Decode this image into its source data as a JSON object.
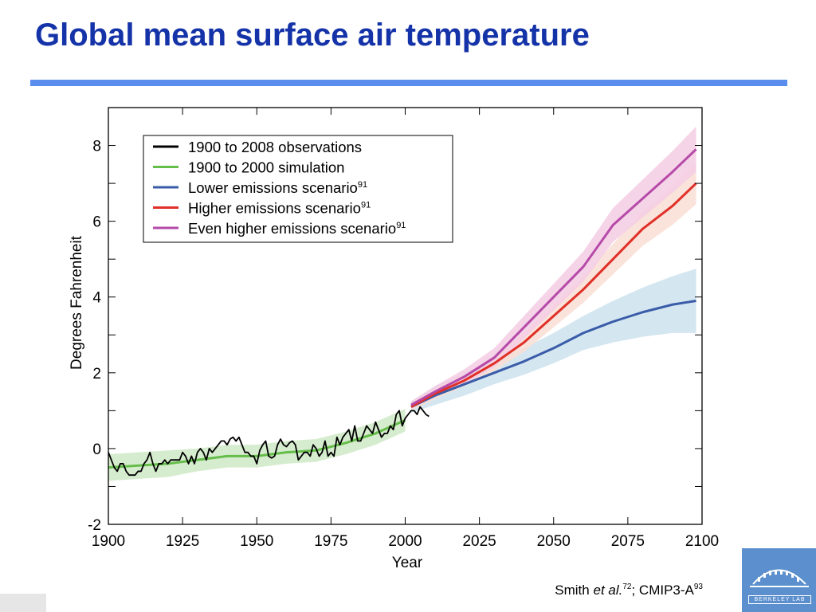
{
  "page": {
    "title": "Global mean surface air temperature",
    "citation": {
      "author": "Smith",
      "etal": "et al.",
      "ref1": "72",
      "sep": "; CMIP3-A",
      "ref2": "93"
    },
    "logo": {
      "label": "BERKELEY LAB"
    },
    "colors": {
      "title": "#1533a8",
      "rule": "#5b8def",
      "logo": "#5b8fcd"
    }
  },
  "chart_data": {
    "type": "line",
    "title": "",
    "xlabel": "Year",
    "ylabel": "Degrees Fahrenheit",
    "xlim": [
      1900,
      2100
    ],
    "ylim": [
      -2,
      9
    ],
    "xticks": [
      1900,
      1925,
      1950,
      1975,
      2000,
      2025,
      2050,
      2075,
      2100
    ],
    "yticks": [
      -2,
      0,
      2,
      4,
      6,
      8
    ],
    "grid": false,
    "legend": {
      "position": "top-left"
    },
    "series": [
      {
        "name": "1900 to 2008 observations",
        "color": "#000000",
        "x": [
          1900,
          1901,
          1902,
          1903,
          1904,
          1905,
          1906,
          1907,
          1908,
          1909,
          1910,
          1911,
          1912,
          1913,
          1914,
          1915,
          1916,
          1917,
          1918,
          1919,
          1920,
          1921,
          1922,
          1923,
          1924,
          1925,
          1926,
          1927,
          1928,
          1929,
          1930,
          1931,
          1932,
          1933,
          1934,
          1935,
          1936,
          1937,
          1938,
          1939,
          1940,
          1941,
          1942,
          1943,
          1944,
          1945,
          1946,
          1947,
          1948,
          1949,
          1950,
          1951,
          1952,
          1953,
          1954,
          1955,
          1956,
          1957,
          1958,
          1959,
          1960,
          1961,
          1962,
          1963,
          1964,
          1965,
          1966,
          1967,
          1968,
          1969,
          1970,
          1971,
          1972,
          1973,
          1974,
          1975,
          1976,
          1977,
          1978,
          1979,
          1980,
          1981,
          1982,
          1983,
          1984,
          1985,
          1986,
          1987,
          1988,
          1989,
          1990,
          1991,
          1992,
          1993,
          1994,
          1995,
          1996,
          1997,
          1998,
          1999,
          2000,
          2001,
          2002,
          2003,
          2004,
          2005,
          2006,
          2007,
          2008
        ],
        "values": [
          -0.1,
          -0.3,
          -0.5,
          -0.6,
          -0.4,
          -0.4,
          -0.6,
          -0.7,
          -0.7,
          -0.7,
          -0.6,
          -0.6,
          -0.4,
          -0.3,
          -0.1,
          -0.4,
          -0.6,
          -0.4,
          -0.4,
          -0.3,
          -0.4,
          -0.3,
          -0.3,
          -0.3,
          -0.3,
          -0.1,
          -0.2,
          -0.4,
          -0.2,
          -0.4,
          -0.1,
          0.0,
          -0.1,
          -0.3,
          0.0,
          -0.1,
          0.0,
          0.1,
          0.2,
          0.2,
          0.1,
          0.25,
          0.3,
          0.2,
          0.3,
          0.1,
          -0.1,
          -0.1,
          -0.2,
          -0.2,
          -0.4,
          -0.05,
          0.1,
          0.2,
          -0.2,
          -0.25,
          -0.2,
          0.1,
          0.25,
          0.1,
          0.05,
          0.15,
          0.2,
          0.1,
          -0.3,
          -0.2,
          -0.1,
          -0.1,
          -0.2,
          0.1,
          0.0,
          -0.2,
          -0.1,
          0.2,
          -0.2,
          -0.1,
          -0.2,
          0.3,
          0.1,
          0.3,
          0.4,
          0.5,
          0.2,
          0.6,
          0.2,
          0.2,
          0.4,
          0.6,
          0.5,
          0.4,
          0.7,
          0.5,
          0.3,
          0.4,
          0.4,
          0.6,
          0.5,
          0.9,
          1.0,
          0.6,
          0.8,
          0.9,
          1.0,
          1.0,
          0.9,
          1.1,
          1.0,
          0.9,
          0.85
        ]
      },
      {
        "name": "1900 to 2000 simulation",
        "color": "#65bd4a",
        "band_color": "#cfe9c5",
        "x": [
          1900,
          1910,
          1920,
          1930,
          1940,
          1950,
          1960,
          1970,
          1980,
          1990,
          2000
        ],
        "values": [
          -0.5,
          -0.45,
          -0.4,
          -0.3,
          -0.2,
          -0.2,
          -0.1,
          -0.05,
          0.15,
          0.4,
          0.75
        ],
        "band": [
          0.35,
          0.35,
          0.35,
          0.3,
          0.3,
          0.3,
          0.3,
          0.3,
          0.3,
          0.3,
          0.3
        ]
      },
      {
        "name": "Lower emissions scenario",
        "name_sup": "91",
        "color": "#3a5ca8",
        "band_color": "#cde3ef",
        "x": [
          2002,
          2010,
          2020,
          2030,
          2040,
          2050,
          2060,
          2070,
          2080,
          2090,
          2098
        ],
        "values": [
          1.1,
          1.4,
          1.7,
          2.0,
          2.3,
          2.65,
          3.05,
          3.35,
          3.6,
          3.8,
          3.9
        ],
        "band": [
          0.15,
          0.25,
          0.3,
          0.3,
          0.35,
          0.4,
          0.45,
          0.55,
          0.65,
          0.75,
          0.85
        ]
      },
      {
        "name": "Higher emissions scenario",
        "name_sup": "91",
        "color": "#e03028",
        "band_color": "#f9ded4",
        "x": [
          2002,
          2010,
          2020,
          2030,
          2040,
          2050,
          2060,
          2070,
          2080,
          2090,
          2098
        ],
        "values": [
          1.1,
          1.45,
          1.8,
          2.25,
          2.8,
          3.5,
          4.2,
          5.0,
          5.8,
          6.4,
          7.0
        ],
        "band": [
          0.1,
          0.15,
          0.15,
          0.2,
          0.25,
          0.3,
          0.35,
          0.4,
          0.45,
          0.5,
          0.55
        ]
      },
      {
        "name": "Even higher emissions scenario",
        "name_sup": "91",
        "color": "#b54aa8",
        "band_color": "#f4cde4",
        "x": [
          2002,
          2010,
          2020,
          2030,
          2040,
          2050,
          2060,
          2070,
          2080,
          2090,
          2098
        ],
        "values": [
          1.15,
          1.5,
          1.9,
          2.4,
          3.2,
          4.0,
          4.8,
          5.9,
          6.6,
          7.3,
          7.9
        ],
        "band": [
          0.1,
          0.15,
          0.2,
          0.25,
          0.3,
          0.35,
          0.4,
          0.45,
          0.5,
          0.55,
          0.6
        ]
      }
    ]
  }
}
